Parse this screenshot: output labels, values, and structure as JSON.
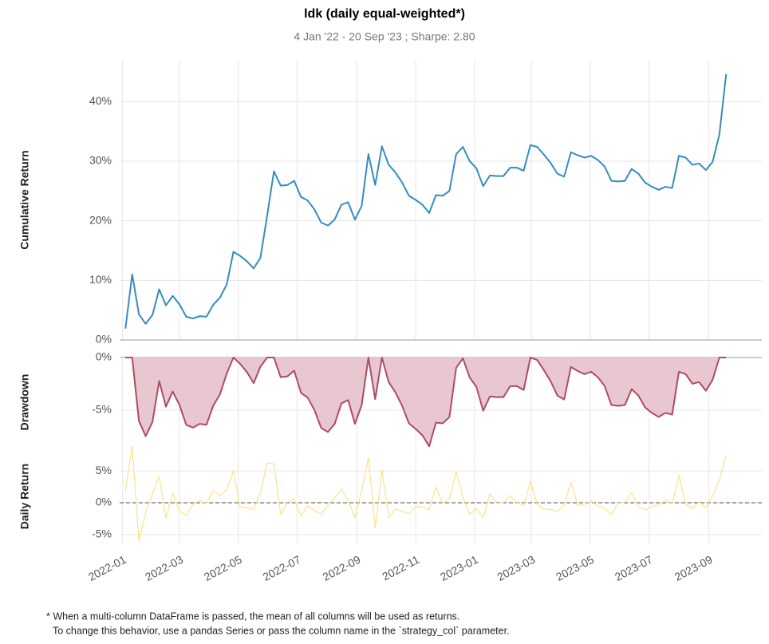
{
  "chart_data": [
    {
      "type": "line",
      "title": "ldk (daily equal-weighted*)",
      "subtitle": "4 Jan '22 - 20 Sep '23 ;  Sharpe: 2.80",
      "ylabel": "Cumulative Return",
      "x": [
        "2022-01-04",
        "2022-01-11",
        "2022-01-18",
        "2022-01-25",
        "2022-02-01",
        "2022-02-08",
        "2022-02-15",
        "2022-02-22",
        "2022-03-01",
        "2022-03-08",
        "2022-03-15",
        "2022-03-22",
        "2022-03-29",
        "2022-04-05",
        "2022-04-12",
        "2022-04-19",
        "2022-04-26",
        "2022-05-03",
        "2022-05-10",
        "2022-05-17",
        "2022-05-24",
        "2022-05-31",
        "2022-06-07",
        "2022-06-14",
        "2022-06-21",
        "2022-06-28",
        "2022-07-05",
        "2022-07-12",
        "2022-07-19",
        "2022-07-26",
        "2022-08-02",
        "2022-08-09",
        "2022-08-16",
        "2022-08-23",
        "2022-08-30",
        "2022-09-06",
        "2022-09-13",
        "2022-09-20",
        "2022-09-27",
        "2022-10-04",
        "2022-10-11",
        "2022-10-18",
        "2022-10-25",
        "2022-11-01",
        "2022-11-08",
        "2022-11-15",
        "2022-11-22",
        "2022-11-29",
        "2022-12-06",
        "2022-12-13",
        "2022-12-20",
        "2022-12-27",
        "2023-01-03",
        "2023-01-10",
        "2023-01-17",
        "2023-01-24",
        "2023-01-31",
        "2023-02-07",
        "2023-02-14",
        "2023-02-21",
        "2023-02-28",
        "2023-03-07",
        "2023-03-14",
        "2023-03-21",
        "2023-03-28",
        "2023-04-04",
        "2023-04-11",
        "2023-04-18",
        "2023-04-25",
        "2023-05-02",
        "2023-05-09",
        "2023-05-16",
        "2023-05-23",
        "2023-05-30",
        "2023-06-06",
        "2023-06-13",
        "2023-06-20",
        "2023-06-27",
        "2023-07-04",
        "2023-07-11",
        "2023-07-18",
        "2023-07-25",
        "2023-08-01",
        "2023-08-08",
        "2023-08-15",
        "2023-08-22",
        "2023-08-29",
        "2023-09-05",
        "2023-09-12",
        "2023-09-19"
      ],
      "series": [
        {
          "color": "#348dc1",
          "values": [
            1.9,
            11,
            4.3,
            2.7,
            4.2,
            8.5,
            5.8,
            7.4,
            6.0,
            3.9,
            3.6,
            4.0,
            3.9,
            5.9,
            7.1,
            9.3,
            14.8,
            14.1,
            13.2,
            12.0,
            13.8,
            20.9,
            28.3,
            25.9,
            26.0,
            26.7,
            24.0,
            23.4,
            21.9,
            19.7,
            19.2,
            20.2,
            22.7,
            23.1,
            20.2,
            22.5,
            31.2,
            26.0,
            32.5,
            29.4,
            28.1,
            26.4,
            24.2,
            23.5,
            22.7,
            21.3,
            24.3,
            24.2,
            25.0,
            31.2,
            32.4,
            30.0,
            28.8,
            25.8,
            27.6,
            27.5,
            27.5,
            28.9,
            28.9,
            28.4,
            32.7,
            32.4,
            31.1,
            29.7,
            27.9,
            27.4,
            31.5,
            31.0,
            30.6,
            30.9,
            30.2,
            29.1,
            26.7,
            26.6,
            26.7,
            28.7,
            27.9,
            26.4,
            25.7,
            25.2,
            25.7,
            25.5,
            30.9,
            30.6,
            29.4,
            29.6,
            28.5,
            29.9,
            34.5,
            44.6
          ]
        }
      ],
      "xlim": [
        "2021-12-29",
        "2023-10-26"
      ],
      "ylim": [
        0,
        47
      ],
      "yticks": [
        {
          "value": 0,
          "label": "0%"
        },
        {
          "value": 10,
          "label": "10%"
        },
        {
          "value": 20,
          "label": "20%"
        },
        {
          "value": 30,
          "label": "30%"
        },
        {
          "value": 40,
          "label": "40%"
        }
      ],
      "grid": true
    },
    {
      "type": "area",
      "ylabel": "Drawdown",
      "x": [
        "2022-01-04",
        "2022-01-11",
        "2022-01-18",
        "2022-01-25",
        "2022-02-01",
        "2022-02-08",
        "2022-02-15",
        "2022-02-22",
        "2022-03-01",
        "2022-03-08",
        "2022-03-15",
        "2022-03-22",
        "2022-03-29",
        "2022-04-05",
        "2022-04-12",
        "2022-04-19",
        "2022-04-26",
        "2022-05-03",
        "2022-05-10",
        "2022-05-17",
        "2022-05-24",
        "2022-05-31",
        "2022-06-07",
        "2022-06-14",
        "2022-06-21",
        "2022-06-28",
        "2022-07-05",
        "2022-07-12",
        "2022-07-19",
        "2022-07-26",
        "2022-08-02",
        "2022-08-09",
        "2022-08-16",
        "2022-08-23",
        "2022-08-30",
        "2022-09-06",
        "2022-09-13",
        "2022-09-20",
        "2022-09-27",
        "2022-10-04",
        "2022-10-11",
        "2022-10-18",
        "2022-10-25",
        "2022-11-01",
        "2022-11-08",
        "2022-11-15",
        "2022-11-22",
        "2022-11-29",
        "2022-12-06",
        "2022-12-13",
        "2022-12-20",
        "2022-12-27",
        "2023-01-03",
        "2023-01-10",
        "2023-01-17",
        "2023-01-24",
        "2023-01-31",
        "2023-02-07",
        "2023-02-14",
        "2023-02-21",
        "2023-02-28",
        "2023-03-07",
        "2023-03-14",
        "2023-03-21",
        "2023-03-28",
        "2023-04-04",
        "2023-04-11",
        "2023-04-18",
        "2023-04-25",
        "2023-05-02",
        "2023-05-09",
        "2023-05-16",
        "2023-05-23",
        "2023-05-30",
        "2023-06-06",
        "2023-06-13",
        "2023-06-20",
        "2023-06-27",
        "2023-07-04",
        "2023-07-11",
        "2023-07-18",
        "2023-07-25",
        "2023-08-01",
        "2023-08-08",
        "2023-08-15",
        "2023-08-22",
        "2023-08-29",
        "2023-09-05",
        "2023-09-12",
        "2023-09-19"
      ],
      "series": [
        {
          "color": "#af4b64",
          "fill": "#e8c7d0",
          "values": [
            0,
            0,
            -6.04,
            -7.48,
            -6.13,
            -2.25,
            -4.68,
            -3.24,
            -4.5,
            -6.4,
            -6.67,
            -6.31,
            -6.4,
            -4.59,
            -3.51,
            -1.53,
            0,
            -0.61,
            -1.39,
            -2.44,
            -0.87,
            0,
            0,
            -1.87,
            -1.79,
            -1.25,
            -3.35,
            -3.82,
            -4.99,
            -6.7,
            -7.09,
            -6.31,
            -4.36,
            -4.05,
            -6.31,
            -4.52,
            0,
            -3.96,
            0,
            -2.34,
            -3.32,
            -4.6,
            -6.26,
            -6.79,
            -7.4,
            -8.45,
            -6.19,
            -6.26,
            -5.66,
            -0.98,
            -0.08,
            -1.89,
            -2.79,
            -5.06,
            -3.7,
            -3.77,
            -3.77,
            -2.72,
            -2.72,
            -3.09,
            0,
            -0.23,
            -1.21,
            -2.26,
            -3.62,
            -3.99,
            -0.9,
            -1.28,
            -1.58,
            -1.36,
            -1.88,
            -2.71,
            -4.52,
            -4.6,
            -4.52,
            -3.01,
            -3.62,
            -4.75,
            -5.27,
            -5.65,
            -5.27,
            -5.43,
            -1.36,
            -1.58,
            -2.49,
            -2.34,
            -3.16,
            -2.11,
            0,
            0
          ]
        }
      ],
      "xlim": [
        "2021-12-29",
        "2023-10-26"
      ],
      "ylim": [
        -8.5,
        0
      ],
      "yticks": [
        {
          "value": -5,
          "label": "-5%"
        },
        {
          "value": 0,
          "label": "0%"
        }
      ],
      "grid": true
    },
    {
      "type": "line",
      "ylabel": "Daily Return",
      "x": [
        "2022-01-04",
        "2022-01-11",
        "2022-01-18",
        "2022-01-25",
        "2022-02-01",
        "2022-02-08",
        "2022-02-15",
        "2022-02-22",
        "2022-03-01",
        "2022-03-08",
        "2022-03-15",
        "2022-03-22",
        "2022-03-29",
        "2022-04-05",
        "2022-04-12",
        "2022-04-19",
        "2022-04-26",
        "2022-05-03",
        "2022-05-10",
        "2022-05-17",
        "2022-05-24",
        "2022-05-31",
        "2022-06-07",
        "2022-06-14",
        "2022-06-21",
        "2022-06-28",
        "2022-07-05",
        "2022-07-12",
        "2022-07-19",
        "2022-07-26",
        "2022-08-02",
        "2022-08-09",
        "2022-08-16",
        "2022-08-23",
        "2022-08-30",
        "2022-09-06",
        "2022-09-13",
        "2022-09-20",
        "2022-09-27",
        "2022-10-04",
        "2022-10-11",
        "2022-10-18",
        "2022-10-25",
        "2022-11-01",
        "2022-11-08",
        "2022-11-15",
        "2022-11-22",
        "2022-11-29",
        "2022-12-06",
        "2022-12-13",
        "2022-12-20",
        "2022-12-27",
        "2023-01-03",
        "2023-01-10",
        "2023-01-17",
        "2023-01-24",
        "2023-01-31",
        "2023-02-07",
        "2023-02-14",
        "2023-02-21",
        "2023-02-28",
        "2023-03-07",
        "2023-03-14",
        "2023-03-21",
        "2023-03-28",
        "2023-04-04",
        "2023-04-11",
        "2023-04-18",
        "2023-04-25",
        "2023-05-02",
        "2023-05-09",
        "2023-05-16",
        "2023-05-23",
        "2023-05-30",
        "2023-06-06",
        "2023-06-13",
        "2023-06-20",
        "2023-06-27",
        "2023-07-04",
        "2023-07-11",
        "2023-07-18",
        "2023-07-25",
        "2023-08-01",
        "2023-08-08",
        "2023-08-15",
        "2023-08-22",
        "2023-08-29",
        "2023-09-05",
        "2023-09-12",
        "2023-09-19"
      ],
      "series": [
        {
          "color": "#fedd78",
          "values": [
            1.9,
            8.93,
            -6.04,
            -1.53,
            1.46,
            4.13,
            -2.49,
            1.51,
            -1.3,
            -1.98,
            -0.29,
            0.39,
            -0.1,
            1.92,
            1.13,
            2.05,
            5.03,
            -0.61,
            -0.79,
            -1.06,
            1.61,
            6.24,
            6.12,
            -1.87,
            0.08,
            0.56,
            -2.13,
            -0.48,
            -1.22,
            -1.8,
            -0.42,
            0.84,
            2.08,
            0.33,
            -2.36,
            1.91,
            7.1,
            -3.96,
            5.16,
            -2.34,
            -1.0,
            -1.33,
            -1.74,
            -0.56,
            -0.65,
            -1.14,
            2.47,
            -0.08,
            0.64,
            4.96,
            0.91,
            -1.81,
            -0.92,
            -2.33,
            1.43,
            -0.08,
            0,
            1.1,
            0,
            -0.39,
            3.35,
            -0.23,
            -0.98,
            -1.07,
            -1.39,
            -0.39,
            3.22,
            -0.38,
            -0.31,
            0.23,
            -0.53,
            -0.84,
            -1.86,
            -0.08,
            0.08,
            1.58,
            -0.62,
            -1.17,
            -0.55,
            -0.4,
            0.4,
            -0.16,
            4.3,
            -0.23,
            -0.92,
            0.15,
            -0.85,
            1.09,
            3.54,
            7.51
          ]
        }
      ],
      "xlim": [
        "2021-12-29",
        "2023-10-26"
      ],
      "ylim": [
        -6.4,
        8.4
      ],
      "yticks": [
        {
          "value": -5,
          "label": "-5%"
        },
        {
          "value": 0,
          "label": "0%"
        },
        {
          "value": 5,
          "label": "5%"
        }
      ],
      "hline": 0,
      "grid": true,
      "xticks": [
        "2022-01",
        "2022-03",
        "2022-05",
        "2022-07",
        "2022-09",
        "2022-11",
        "2023-01",
        "2023-03",
        "2023-05",
        "2023-07",
        "2023-09"
      ]
    }
  ],
  "footnote": [
    "* When a multi-column DataFrame is passed, the mean of all columns will be used as returns.",
    "To change this behavior, use a pandas Series or pass the column name in the `strategy_col` parameter."
  ]
}
